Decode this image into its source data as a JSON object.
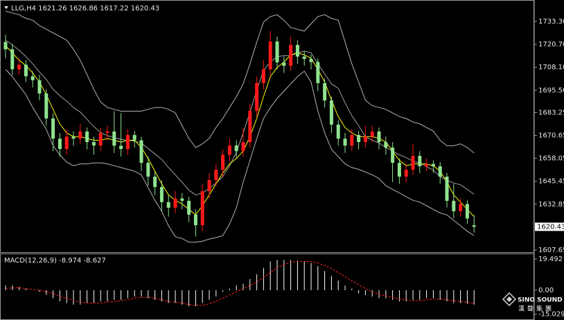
{
  "chart_data": [
    {
      "type": "candlestick",
      "symbol": "LLG,H4",
      "up_color": "#ff1a1a",
      "down_color": "#8fe38f",
      "ylim": [
        1606.5,
        1743.2
      ],
      "yticks": [
        {
          "value": 1733.3,
          "label": "1733.30"
        },
        {
          "value": 1720.7,
          "label": "1720.70"
        },
        {
          "value": 1708.1,
          "label": "1708.10"
        },
        {
          "value": 1695.5,
          "label": "1695.50"
        },
        {
          "value": 1683.25,
          "label": "1683.25"
        },
        {
          "value": 1670.65,
          "label": "1670.65"
        },
        {
          "value": 1658.05,
          "label": "1658.05"
        },
        {
          "value": 1645.45,
          "label": "1645.45"
        },
        {
          "value": 1632.85,
          "label": "1632.85"
        },
        {
          "value": 1607.65,
          "label": "1607.65"
        }
      ],
      "open": [
        1722,
        1718,
        1707,
        1709.5,
        1703.2,
        1701,
        1693.7,
        1680,
        1668.9,
        1663.2,
        1670,
        1668.9,
        1672.8,
        1667,
        1665.1,
        1672,
        1672.8,
        1665,
        1663.2,
        1670.9,
        1668,
        1655.6,
        1648,
        1642.3,
        1634,
        1630.9,
        1636,
        1634.7,
        1627.1,
        1621.3,
        1640,
        1646.1,
        1651.8,
        1660,
        1665.1,
        1662,
        1667,
        1684.2,
        1699.4,
        1707,
        1722.3,
        1710.8,
        1708.9,
        1720.4,
        1714,
        1712.7,
        1711,
        1699.4,
        1689.9,
        1676.6,
        1668.9,
        1665.1,
        1670.9,
        1667,
        1670,
        1672.8,
        1667,
        1664,
        1655.6,
        1648,
        1651.8,
        1659.4,
        1653.7,
        1655,
        1653.7,
        1648,
        1634.7,
        1629,
        1633,
        1621.26
      ],
      "high": [
        1726,
        1721,
        1713,
        1712,
        1706,
        1704,
        1696,
        1683,
        1672,
        1674,
        1673,
        1677,
        1675,
        1670,
        1675,
        1676,
        1684,
        1683,
        1674,
        1673,
        1670,
        1659,
        1651,
        1646,
        1638,
        1640,
        1639,
        1637,
        1630,
        1644,
        1650,
        1655,
        1663,
        1669,
        1668,
        1675,
        1688,
        1703,
        1712,
        1728,
        1725,
        1714,
        1725,
        1723,
        1717,
        1715,
        1713,
        1702,
        1692,
        1679,
        1672,
        1674,
        1673,
        1676,
        1676,
        1675,
        1670,
        1667,
        1658,
        1655,
        1666,
        1662,
        1658,
        1657,
        1656,
        1650,
        1644,
        1636,
        1635,
        1626.86
      ],
      "low": [
        1713,
        1704,
        1704,
        1700,
        1697,
        1690,
        1676,
        1662,
        1659,
        1660,
        1665,
        1666,
        1663,
        1660,
        1662,
        1668,
        1661,
        1659,
        1660,
        1664,
        1651,
        1643,
        1638,
        1629,
        1626,
        1628,
        1630,
        1623,
        1615,
        1618,
        1636,
        1643,
        1648,
        1656,
        1658,
        1659,
        1664,
        1681,
        1696,
        1704,
        1707,
        1705,
        1706,
        1710,
        1709,
        1707,
        1695,
        1686,
        1672,
        1665,
        1661,
        1662,
        1663,
        1664,
        1667,
        1663,
        1660,
        1645,
        1644,
        1645,
        1649,
        1650,
        1651,
        1650,
        1644,
        1631,
        1625,
        1626,
        1622,
        1617.22
      ],
      "close": [
        1718,
        1707,
        1709.5,
        1703.2,
        1701,
        1693.7,
        1680,
        1668.9,
        1663.2,
        1670,
        1668.9,
        1672.8,
        1667,
        1665.1,
        1672,
        1672.8,
        1665,
        1663.2,
        1670.9,
        1668,
        1655.6,
        1648,
        1642.3,
        1634,
        1630.9,
        1636,
        1634.7,
        1627.1,
        1621.3,
        1640,
        1646.1,
        1651.8,
        1660,
        1665.1,
        1662,
        1667,
        1684.2,
        1699.4,
        1707,
        1722.3,
        1710.8,
        1708.9,
        1720.4,
        1714,
        1712.7,
        1711,
        1699.4,
        1689.9,
        1676.6,
        1668.9,
        1665.1,
        1670.9,
        1667,
        1670,
        1672.8,
        1667,
        1664,
        1655.6,
        1648,
        1651.8,
        1659.4,
        1653.7,
        1655,
        1653.7,
        1648,
        1634.7,
        1629,
        1633,
        1625,
        1620.43
      ],
      "series": [
        {
          "color": "#b4b4b4",
          "values": [
            1739,
            1738,
            1737,
            1735,
            1734,
            1731,
            1729,
            1727,
            1725,
            1723,
            1718,
            1712,
            1704,
            1696,
            1689,
            1686,
            1685,
            1684,
            1684,
            1684,
            1684,
            1685,
            1686,
            1686,
            1685,
            1683,
            1676,
            1669,
            1664,
            1666,
            1669,
            1675,
            1680,
            1686,
            1692,
            1699,
            1710,
            1722,
            1733,
            1736,
            1737,
            1734,
            1730,
            1729,
            1728,
            1732,
            1736,
            1737,
            1735,
            1734,
            1722,
            1710,
            1700,
            1690,
            1687,
            1686,
            1685,
            1683,
            1681,
            1680,
            1678,
            1677,
            1675,
            1673,
            1668,
            1665,
            1665,
            1666,
            1664,
            1661
          ]
        },
        {
          "color": "#b4b4b4",
          "values": [
            1707,
            1703,
            1698,
            1693,
            1686,
            1680,
            1674,
            1665,
            1660,
            1656,
            1654,
            1655,
            1655,
            1655.6,
            1655.6,
            1655,
            1654,
            1653,
            1652,
            1651,
            1649,
            1642,
            1635,
            1629,
            1621,
            1615,
            1614,
            1612,
            1612,
            1612.5,
            1613.7,
            1614.5,
            1615.6,
            1622,
            1631,
            1645,
            1657,
            1669,
            1680,
            1686,
            1691,
            1695,
            1699,
            1703,
            1706,
            1700,
            1684,
            1672,
            1663,
            1659,
            1655,
            1653,
            1652,
            1650.5,
            1649,
            1647,
            1643,
            1641,
            1639,
            1637,
            1635,
            1634,
            1632,
            1630,
            1628,
            1627,
            1624,
            1621,
            1618,
            1615.6
          ]
        },
        {
          "color": "#a0a0a0",
          "values": [
            1723,
            1720.5,
            1717.5,
            1714,
            1710,
            1705.5,
            1701.5,
            1696,
            1692.5,
            1689.5,
            1686,
            1683.5,
            1679.5,
            1675.5,
            1672.3,
            1670.5,
            1669.5,
            1668.5,
            1668,
            1667.5,
            1666.5,
            1663.5,
            1660.5,
            1657.5,
            1653,
            1649,
            1645,
            1640.5,
            1638,
            1639,
            1641.5,
            1644.5,
            1648,
            1654,
            1661.5,
            1672,
            1683.5,
            1695.5,
            1706.5,
            1711,
            1714,
            1714.5,
            1714.5,
            1716,
            1717,
            1716,
            1710,
            1704.5,
            1699,
            1696.5,
            1688.5,
            1681.5,
            1676,
            1670,
            1668,
            1666.5,
            1664,
            1662,
            1660,
            1658.5,
            1656.5,
            1655.5,
            1653.5,
            1651.5,
            1648,
            1646,
            1644.5,
            1643.5,
            1641,
            1638.3
          ]
        },
        {
          "color": "#ffff00",
          "values": [
            1720,
            1716,
            1712,
            1709,
            1705,
            1700,
            1693,
            1685,
            1677,
            1672,
            1670,
            1670,
            1669,
            1668,
            1668,
            1669,
            1668,
            1667,
            1668,
            1668,
            1664,
            1658,
            1651,
            1644,
            1638,
            1635,
            1633,
            1630,
            1627,
            1632,
            1638,
            1644,
            1650,
            1655,
            1658,
            1662,
            1670,
            1680,
            1692,
            1703,
            1708,
            1711,
            1715,
            1716,
            1715,
            1713,
            1707,
            1700,
            1690,
            1681,
            1675,
            1672,
            1670,
            1670,
            1670,
            1669,
            1667,
            1662,
            1657,
            1654,
            1655,
            1655,
            1655,
            1654,
            1651,
            1645,
            1638,
            1634,
            1630,
            1626
          ]
        }
      ]
    },
    {
      "type": "macd",
      "title": "MACD(12,26,9)",
      "ylim": [
        -16.9,
        22.1
      ],
      "yticks": [
        19.492,
        {
          "value": 0,
          "label": "0.00"
        },
        -15.029
      ],
      "series": [
        {
          "style": "histogram",
          "color": "#ffffff",
          "values": [
            3,
            3,
            2,
            1,
            0,
            -1,
            -3,
            -5,
            -7,
            -8,
            -9,
            -9,
            -8,
            -8,
            -7,
            -7,
            -6,
            -6,
            -5,
            -4,
            -4,
            -5,
            -6,
            -7,
            -8,
            -8,
            -9,
            -10,
            -10,
            -8,
            -6,
            -4,
            -1,
            1,
            3,
            4,
            7,
            10,
            14,
            18,
            19,
            19,
            19,
            18.5,
            18,
            17,
            15,
            12,
            9,
            6,
            3,
            1,
            -2,
            -3,
            -4,
            -5,
            -5,
            -6,
            -7,
            -7,
            -6,
            -6,
            -5,
            -5,
            -6,
            -7,
            -8,
            -8,
            -8.5,
            -8.974
          ]
        },
        {
          "style": "dashed",
          "color": "#ff2020",
          "values": [
            1,
            1.5,
            1.5,
            1,
            0.5,
            0,
            -1,
            -2,
            -4,
            -5,
            -6.5,
            -7.5,
            -8,
            -8,
            -8,
            -7.5,
            -7,
            -6.5,
            -6,
            -5,
            -4.5,
            -4.5,
            -5,
            -6,
            -7,
            -7.5,
            -8,
            -9,
            -9.5,
            -9.5,
            -8.5,
            -7,
            -5,
            -3,
            -1,
            1,
            3,
            5,
            8,
            11,
            14,
            16,
            17.5,
            18,
            18,
            18,
            17,
            15.5,
            13.5,
            11,
            8.5,
            6,
            3.5,
            1,
            -1,
            -2.5,
            -3.5,
            -4.5,
            -5.5,
            -6,
            -6.5,
            -6.5,
            -6,
            -5.5,
            -5.5,
            -6,
            -6.5,
            -7,
            -7.5,
            -8.627
          ]
        }
      ]
    }
  ],
  "watermark": {
    "name": "SINO SOUND",
    "subtitle": "漢聲集團"
  }
}
